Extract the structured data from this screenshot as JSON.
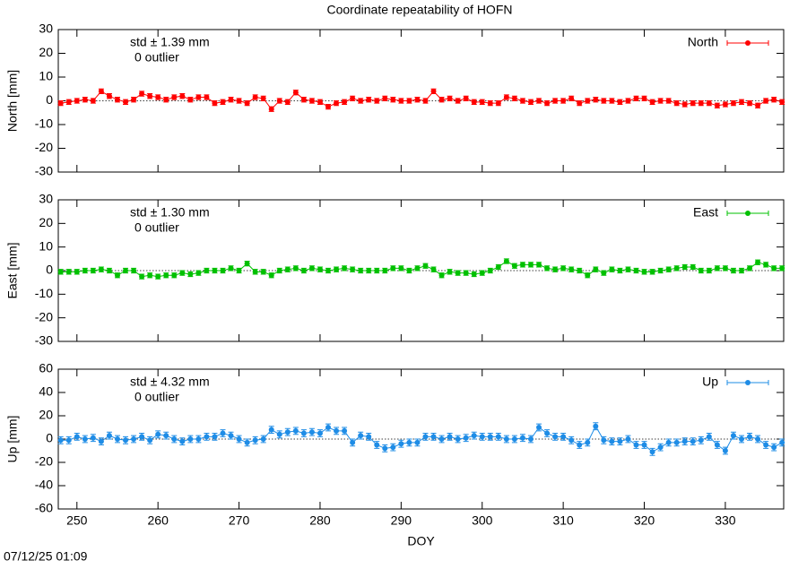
{
  "title": "Coordinate repeatability of HOFN",
  "timestamp": "07/12/25 01:09",
  "chart_data": [
    {
      "type": "line",
      "ylabel": "North [mm]",
      "std_text": "std ± 1.39 mm",
      "outlier_text": "0 outlier",
      "legend": "top-right",
      "xlim": [
        247.7,
        337.2
      ],
      "xticks": [
        250,
        260,
        270,
        280,
        290,
        300,
        310,
        320,
        330
      ],
      "ylim": [
        -30,
        30
      ],
      "yticks": [
        -30,
        -20,
        -10,
        0,
        10,
        20,
        30
      ],
      "x": [
        248,
        249,
        250,
        251,
        252,
        253,
        254,
        255,
        256,
        257,
        258,
        259,
        260,
        261,
        262,
        263,
        264,
        265,
        266,
        267,
        268,
        269,
        270,
        271,
        272,
        273,
        274,
        275,
        276,
        277,
        278,
        279,
        280,
        281,
        282,
        283,
        284,
        285,
        286,
        287,
        288,
        289,
        290,
        291,
        292,
        293,
        294,
        295,
        296,
        297,
        298,
        299,
        300,
        301,
        302,
        303,
        304,
        305,
        306,
        307,
        308,
        309,
        310,
        311,
        312,
        313,
        314,
        315,
        316,
        317,
        318,
        319,
        320,
        321,
        322,
        323,
        324,
        325,
        326,
        327,
        328,
        329,
        330,
        331,
        332,
        333,
        334,
        335,
        336,
        337
      ],
      "series": [
        {
          "name": "North",
          "color": "#ff0000",
          "error": 1,
          "values": [
            -1,
            -0.5,
            0,
            0.5,
            0,
            4,
            2,
            0.5,
            -0.5,
            0.5,
            3,
            2,
            1.5,
            0.5,
            1.5,
            2,
            0.5,
            1.5,
            1.5,
            -1,
            -0.5,
            0.5,
            0,
            -1,
            1.5,
            1,
            -3.5,
            0,
            -0.5,
            3.5,
            0.5,
            0,
            -0.5,
            -2.5,
            -1,
            -0.5,
            1,
            0,
            0.5,
            0,
            1,
            0.5,
            0,
            0,
            0.5,
            0,
            4,
            0.5,
            1,
            0,
            1,
            -0.5,
            -0.5,
            -1,
            -1,
            1.5,
            1,
            0,
            -0.5,
            0,
            -1,
            0,
            0,
            1,
            -1,
            0,
            0.5,
            0,
            0,
            -0.5,
            0,
            1,
            1,
            -0.5,
            0,
            0,
            -1,
            -1.5,
            -1,
            -1,
            -1,
            -2,
            -1.5,
            -1,
            -0.5,
            -1,
            -2,
            0,
            0.5,
            -0.5
          ]
        }
      ]
    },
    {
      "type": "line",
      "ylabel": "East [mm]",
      "std_text": "std ± 1.30 mm",
      "outlier_text": "0 outlier",
      "legend": "top-right",
      "xlim": [
        247.7,
        337.2
      ],
      "xticks": [
        250,
        260,
        270,
        280,
        290,
        300,
        310,
        320,
        330
      ],
      "ylim": [
        -30,
        30
      ],
      "yticks": [
        -30,
        -20,
        -10,
        0,
        10,
        20,
        30
      ],
      "x": [
        248,
        249,
        250,
        251,
        252,
        253,
        254,
        255,
        256,
        257,
        258,
        259,
        260,
        261,
        262,
        263,
        264,
        265,
        266,
        267,
        268,
        269,
        270,
        271,
        272,
        273,
        274,
        275,
        276,
        277,
        278,
        279,
        280,
        281,
        282,
        283,
        284,
        285,
        286,
        287,
        288,
        289,
        290,
        291,
        292,
        293,
        294,
        295,
        296,
        297,
        298,
        299,
        300,
        301,
        302,
        303,
        304,
        305,
        306,
        307,
        308,
        309,
        310,
        311,
        312,
        313,
        314,
        315,
        316,
        317,
        318,
        319,
        320,
        321,
        322,
        323,
        324,
        325,
        326,
        327,
        328,
        329,
        330,
        331,
        332,
        333,
        334,
        335,
        336,
        337
      ],
      "series": [
        {
          "name": "East",
          "color": "#00c000",
          "error": 1,
          "values": [
            -0.5,
            -0.5,
            -0.5,
            0,
            0,
            0.5,
            0,
            -2,
            0,
            0,
            -2.5,
            -2,
            -2.5,
            -2,
            -2,
            -1,
            -1.5,
            -1,
            0,
            0,
            0,
            1,
            0,
            3,
            -0.5,
            -0.5,
            -2,
            0,
            0.5,
            1,
            0,
            1,
            0.5,
            0,
            0.5,
            1,
            0.5,
            0,
            0,
            0,
            0,
            1,
            1,
            0,
            1,
            2,
            0.5,
            -2,
            -0.5,
            -1,
            -1,
            -1.5,
            -1,
            0,
            1.5,
            4,
            2,
            2.5,
            2.5,
            2.5,
            1,
            0.5,
            1,
            0.5,
            0,
            -2,
            0.5,
            -1,
            0.5,
            0,
            0.5,
            0,
            -0.5,
            -0.5,
            0,
            0.5,
            1,
            1.5,
            1.5,
            0,
            0,
            1,
            1,
            0,
            0,
            1,
            3.5,
            2.5,
            1,
            1
          ]
        }
      ]
    },
    {
      "type": "line",
      "ylabel": "Up [mm]",
      "xlabel": "DOY",
      "std_text": "std ± 4.32 mm",
      "outlier_text": "0 outlier",
      "legend": "top-right",
      "xlim": [
        247.7,
        337.2
      ],
      "xticks": [
        250,
        260,
        270,
        280,
        290,
        300,
        310,
        320,
        330
      ],
      "ylim": [
        -60,
        60
      ],
      "yticks": [
        -60,
        -40,
        -20,
        0,
        20,
        40,
        60
      ],
      "x": [
        248,
        249,
        250,
        251,
        252,
        253,
        254,
        255,
        256,
        257,
        258,
        259,
        260,
        261,
        262,
        263,
        264,
        265,
        266,
        267,
        268,
        269,
        270,
        271,
        272,
        273,
        274,
        275,
        276,
        277,
        278,
        279,
        280,
        281,
        282,
        283,
        284,
        285,
        286,
        287,
        288,
        289,
        290,
        291,
        292,
        293,
        294,
        295,
        296,
        297,
        298,
        299,
        300,
        301,
        302,
        303,
        304,
        305,
        306,
        307,
        308,
        309,
        310,
        311,
        312,
        313,
        314,
        315,
        316,
        317,
        318,
        319,
        320,
        321,
        322,
        323,
        324,
        325,
        326,
        327,
        328,
        329,
        330,
        331,
        332,
        333,
        334,
        335,
        336,
        337
      ],
      "series": [
        {
          "name": "Up",
          "color": "#1e8ce6",
          "error": 3,
          "values": [
            -1,
            -1,
            2,
            0,
            1,
            -2,
            3,
            0,
            -1,
            0,
            2,
            -1,
            4,
            3,
            0,
            -2,
            0,
            0,
            2,
            2,
            5,
            3,
            0,
            -3,
            -1,
            0,
            8,
            4,
            6,
            7,
            5,
            6,
            5,
            10,
            7,
            7,
            -3,
            3,
            2,
            -5,
            -8,
            -7,
            -4,
            -3,
            -3,
            2,
            2,
            0,
            2,
            0,
            1,
            3,
            2,
            2,
            2,
            0,
            0,
            1,
            0,
            10,
            5,
            2,
            2,
            -1,
            -5,
            -3,
            11,
            -1,
            -2,
            -2,
            0,
            -5,
            -5,
            -11,
            -7,
            -3,
            -3,
            -2,
            -2,
            -1,
            2,
            -5,
            -10,
            3,
            0,
            2,
            0,
            -5,
            -7,
            -3
          ]
        }
      ]
    }
  ]
}
